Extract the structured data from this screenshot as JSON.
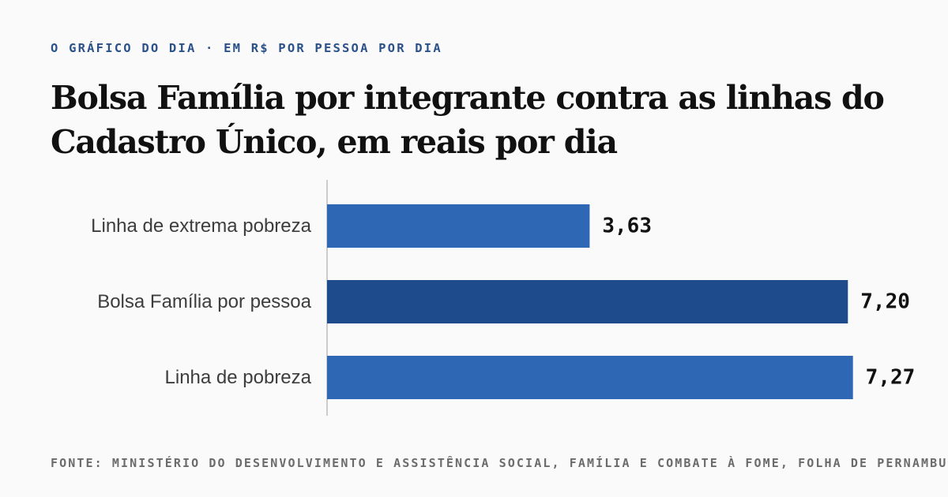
{
  "header": {
    "kicker": "O GRÁFICO DO DIA · EM R$ POR PESSOA POR DIA",
    "title": "Bolsa Família por integrante contra as linhas do Cadastro Único, em reais por dia"
  },
  "chart_data": {
    "type": "bar",
    "orientation": "horizontal",
    "categories": [
      "Linha de extrema pobreza",
      "Bolsa Família por pessoa",
      "Linha de pobreza"
    ],
    "values": [
      3.63,
      7.2,
      7.27
    ],
    "value_labels": [
      "3,63",
      "7,20",
      "7,27"
    ],
    "highlight_index": 1,
    "xlim": [
      0,
      8.3
    ],
    "grid": false,
    "legend": "none"
  },
  "colors": {
    "bar": "#2e67b3",
    "bar_highlight": "#1e4b8c",
    "axis": "#bdbdbd",
    "kicker": "#2a5189"
  },
  "footer": {
    "source": "FONTE: MINISTÉRIO DO DESENVOLVIMENTO E ASSISTÊNCIA SOCIAL, FAMÍLIA E COMBATE À FOME, FOLHA DE PERNAMBUCO"
  }
}
